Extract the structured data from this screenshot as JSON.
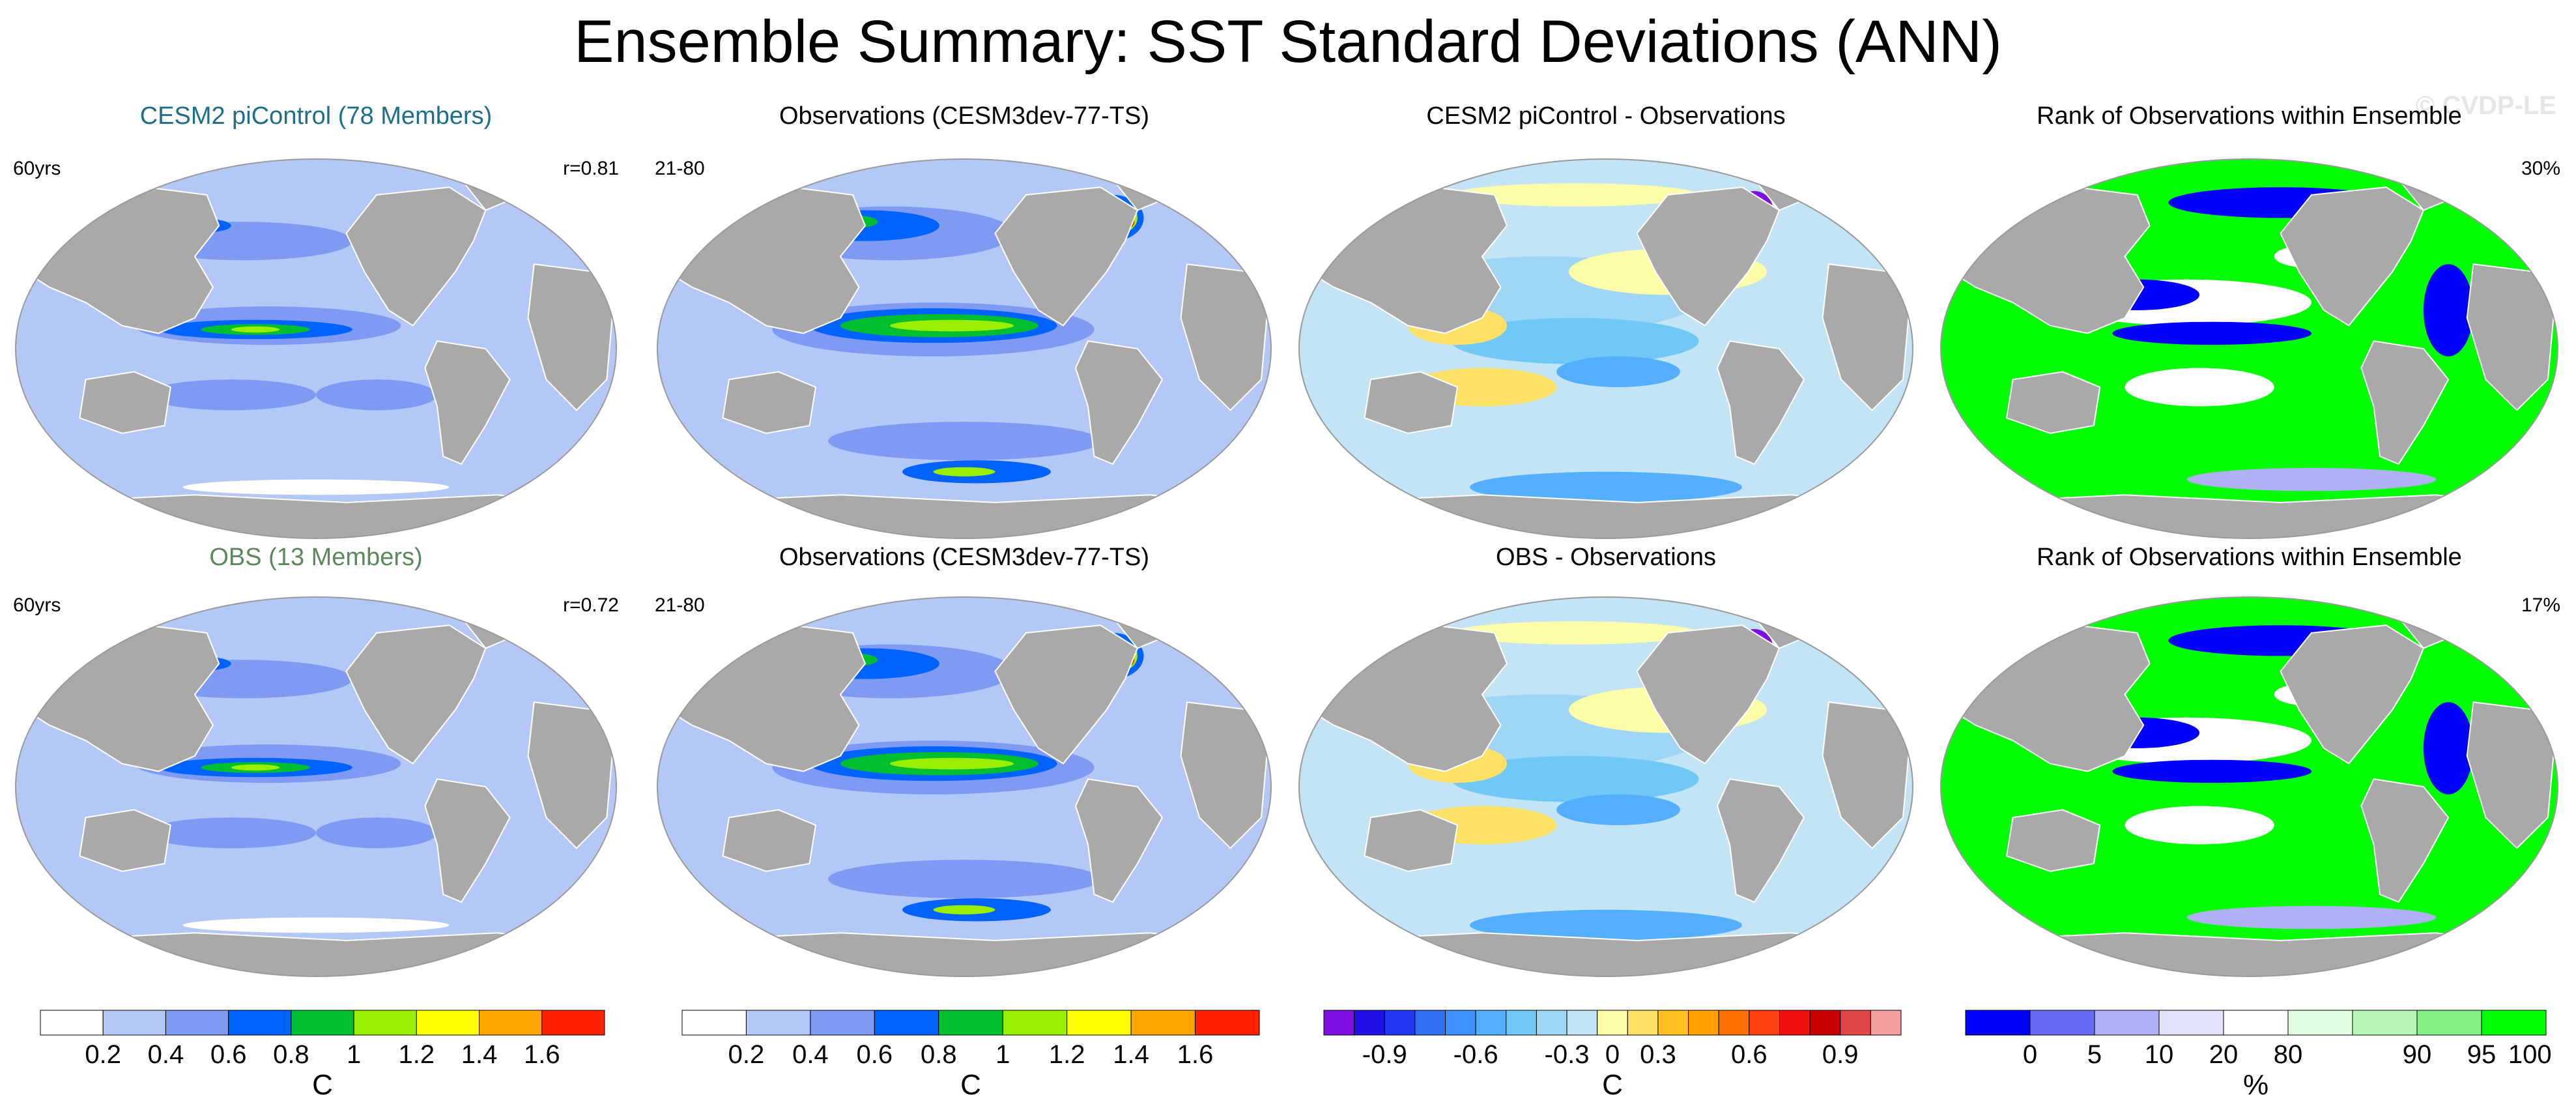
{
  "title": "Ensemble Summary: SST Standard Deviations (ANN)",
  "watermark": "© CVDP-LE",
  "colors": {
    "land": "#a9a9a9",
    "coast": "#ffffff",
    "title_cesm": "#1f6f8b",
    "title_obs": "#5a8a5a"
  },
  "chart_data": {
    "type": "heatmap",
    "panels": [
      {
        "id": "r1c1",
        "title": "CESM2 piControl (78 Members)",
        "title_color": "title_cesm",
        "left_label": "60yrs",
        "right_label": "r=0.81",
        "fill": "std"
      },
      {
        "id": "r1c2",
        "title": "Observations (CESM3dev-77-TS)",
        "title_color": "black",
        "left_label": "21-80",
        "right_label": "",
        "fill": "std_obs"
      },
      {
        "id": "r1c3",
        "title": "CESM2 piControl - Observations",
        "title_color": "black",
        "left_label": "",
        "right_label": "",
        "fill": "diff"
      },
      {
        "id": "r1c4",
        "title": "Rank of Observations within Ensemble",
        "title_color": "black",
        "left_label": "",
        "right_label": "30%",
        "fill": "rank"
      },
      {
        "id": "r2c1",
        "title": "OBS (13 Members)",
        "title_color": "title_obs",
        "left_label": "60yrs",
        "right_label": "r=0.72",
        "fill": "std"
      },
      {
        "id": "r2c2",
        "title": "Observations (CESM3dev-77-TS)",
        "title_color": "black",
        "left_label": "21-80",
        "right_label": "",
        "fill": "std_obs"
      },
      {
        "id": "r2c3",
        "title": "OBS - Observations",
        "title_color": "black",
        "left_label": "",
        "right_label": "",
        "fill": "diff"
      },
      {
        "id": "r2c4",
        "title": "Rank of Observations within Ensemble",
        "title_color": "black",
        "left_label": "",
        "right_label": "17%",
        "fill": "rank"
      }
    ],
    "colorbars": [
      {
        "id": "cb1",
        "unit": "C",
        "colors": [
          "#ffffff",
          "#b4c8f7",
          "#7f9af2",
          "#0062ff",
          "#00c030",
          "#98f000",
          "#ffff00",
          "#ffa500",
          "#ff2000"
        ],
        "ticks": [
          "0.2",
          "0.4",
          "0.6",
          "0.8",
          "1",
          "1.2",
          "1.4",
          "1.6"
        ]
      },
      {
        "id": "cb2",
        "unit": "C",
        "colors": [
          "#ffffff",
          "#b4c8f7",
          "#7f9af2",
          "#0062ff",
          "#00c030",
          "#98f000",
          "#ffff00",
          "#ffa500",
          "#ff2000"
        ],
        "ticks": [
          "0.2",
          "0.4",
          "0.6",
          "0.8",
          "1",
          "1.2",
          "1.4",
          "1.6"
        ]
      },
      {
        "id": "cb3",
        "unit": "C",
        "colors": [
          "#7b10e0",
          "#2010e8",
          "#1f38f0",
          "#2f6ff0",
          "#3f8fff",
          "#52b0ff",
          "#70c8f7",
          "#9fd6f5",
          "#c2e4f4",
          "#fffca8",
          "#ffe066",
          "#ffc020",
          "#ffa000",
          "#ff7000",
          "#ff4010",
          "#f01010",
          "#c80000",
          "#e04848",
          "#f4a0a0"
        ],
        "ticks": [
          "-0.9",
          "-0.6",
          "-0.3",
          "0",
          "0.3",
          "0.6",
          "0.9"
        ]
      },
      {
        "id": "cb4",
        "unit": "%",
        "colors": [
          "#0000ff",
          "#6a6af8",
          "#b0b0f8",
          "#e2e2fc",
          "#ffffff",
          "#e2fce2",
          "#b6f7b6",
          "#86f086",
          "#00ff00"
        ],
        "ticks": [
          "0",
          "5",
          "10",
          "20",
          "80",
          "90",
          "95",
          "100"
        ]
      }
    ]
  }
}
